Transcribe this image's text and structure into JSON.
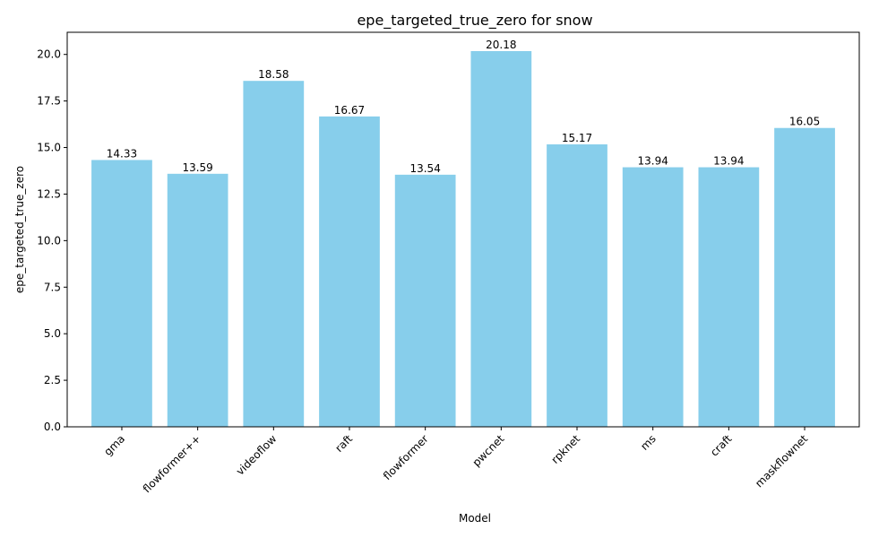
{
  "chart_data": {
    "type": "bar",
    "title": "epe_targeted_true_zero for snow",
    "xlabel": "Model",
    "ylabel": "epe_targeted_true_zero",
    "categories": [
      "gma",
      "flowformer++",
      "videoflow",
      "raft",
      "flowformer",
      "pwcnet",
      "rpknet",
      "ms",
      "craft",
      "maskflownet"
    ],
    "values": [
      14.33,
      13.59,
      18.58,
      16.67,
      13.54,
      20.18,
      15.17,
      13.94,
      13.94,
      16.05
    ],
    "data_labels": [
      "14.33",
      "13.59",
      "18.58",
      "16.67",
      "13.54",
      "20.18",
      "15.17",
      "13.94",
      "13.94",
      "16.05"
    ],
    "ylim": [
      0,
      21.19
    ],
    "yticks": [
      0.0,
      2.5,
      5.0,
      7.5,
      10.0,
      12.5,
      15.0,
      17.5,
      20.0
    ],
    "ytick_labels": [
      "0.0",
      "2.5",
      "5.0",
      "7.5",
      "10.0",
      "12.5",
      "15.0",
      "17.5",
      "20.0"
    ],
    "bar_color": "#87ceeb",
    "grid": false,
    "legend": false
  }
}
